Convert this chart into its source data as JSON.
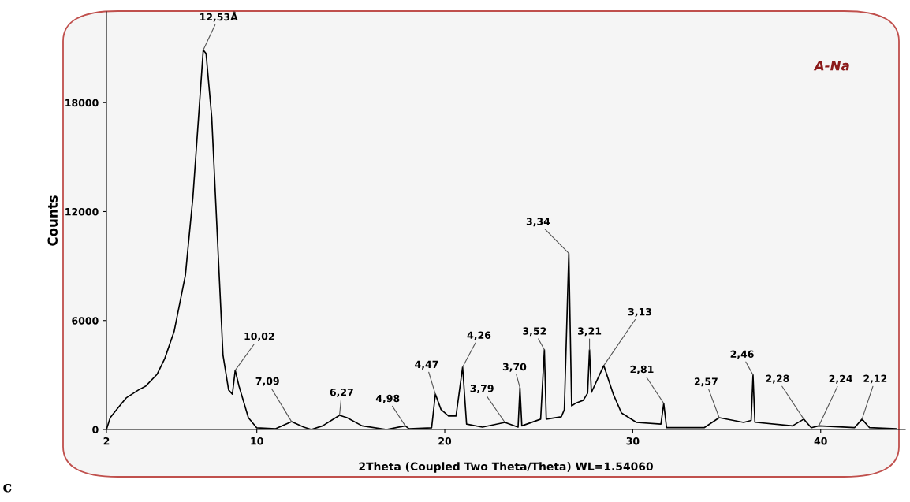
{
  "chart_data": {
    "type": "line",
    "xlabel": "2Theta (Coupled Two Theta/Theta) WL=1.54060",
    "ylabel": "Counts",
    "series": [
      {
        "color": "#000000",
        "x": [
          2,
          2.2,
          2.6,
          3.05,
          3.7,
          4.1,
          4.7,
          5.1,
          5.6,
          6.2,
          6.6,
          6.9,
          7.15,
          7.3,
          7.6,
          7.9,
          8.2,
          8.5,
          8.7,
          8.85,
          9.05,
          9.55,
          10,
          11,
          11.85,
          12.5,
          12.9,
          13.5,
          14.4,
          14.8,
          15.6,
          16.9,
          17.9,
          18.1,
          19.3,
          19.5,
          19.8,
          20.2,
          20.6,
          20.95,
          21.16,
          22.0,
          23.2,
          23.9,
          24.0,
          24.1,
          25.1,
          25.3,
          25.4,
          26.2,
          26.36,
          26.6,
          26.75,
          26.95,
          27.37,
          27.6,
          27.7,
          27.8,
          28.46,
          28.96,
          29.4,
          30.2,
          31.5,
          31.65,
          31.8,
          33.8,
          34.6,
          35.9,
          36.3,
          36.4,
          36.5,
          38.5,
          39.1,
          39.5,
          39.9,
          41.8,
          42.2,
          42.6,
          44.0
        ],
        "values": [
          0,
          650,
          1170,
          1740,
          2175,
          2400,
          3050,
          3900,
          5400,
          8500,
          12800,
          17200,
          20900,
          20700,
          17200,
          10650,
          4100,
          2175,
          1950,
          3260,
          2400,
          650,
          90,
          40,
          430,
          130,
          0,
          200,
          780,
          650,
          200,
          0,
          200,
          40,
          90,
          1950,
          1100,
          740,
          740,
          3440,
          300,
          130,
          390,
          130,
          2300,
          200,
          570,
          4390,
          570,
          700,
          1090,
          9700,
          1300,
          1440,
          1610,
          2000,
          4390,
          2040,
          3520,
          1960,
          910,
          390,
          300,
          1440,
          100,
          100,
          650,
          390,
          500,
          3000,
          400,
          200,
          570,
          100,
          200,
          100,
          570,
          100,
          40
        ]
      }
    ],
    "xlim": [
      2,
      44.5
    ],
    "xticks": [
      2,
      10,
      20,
      30,
      40
    ],
    "ylim": [
      0,
      23000
    ],
    "yticks": [
      0,
      6000,
      12000,
      18000
    ],
    "grid": false,
    "legend": false,
    "annotations": [
      {
        "text": "12,53Å",
        "x": 7.15,
        "y": 20900
      },
      {
        "text": "10,02",
        "x": 8.85,
        "y": 3260
      },
      {
        "text": "7,09",
        "x": 11.85,
        "y": 430
      },
      {
        "text": "6,27",
        "x": 14.4,
        "y": 780
      },
      {
        "text": "4,98",
        "x": 17.9,
        "y": 200
      },
      {
        "text": "4,47",
        "x": 19.5,
        "y": 1950
      },
      {
        "text": "4,26",
        "x": 20.95,
        "y": 3440
      },
      {
        "text": "3,79",
        "x": 23.2,
        "y": 390
      },
      {
        "text": "3,70",
        "x": 24.0,
        "y": 2300
      },
      {
        "text": "3,52",
        "x": 25.3,
        "y": 4390
      },
      {
        "text": "3,34",
        "x": 26.6,
        "y": 9700
      },
      {
        "text": "3,21",
        "x": 27.7,
        "y": 4390
      },
      {
        "text": "3,13",
        "x": 28.46,
        "y": 3520
      },
      {
        "text": "2,81",
        "x": 31.65,
        "y": 1440
      },
      {
        "text": "2,57",
        "x": 34.6,
        "y": 650
      },
      {
        "text": "2,46",
        "x": 36.4,
        "y": 3000
      },
      {
        "text": "2,28",
        "x": 39.1,
        "y": 570
      },
      {
        "text": "2,24",
        "x": 39.9,
        "y": 200
      },
      {
        "text": "2,12",
        "x": 42.2,
        "y": 570
      },
      "A-Na",
      "c"
    ]
  }
}
